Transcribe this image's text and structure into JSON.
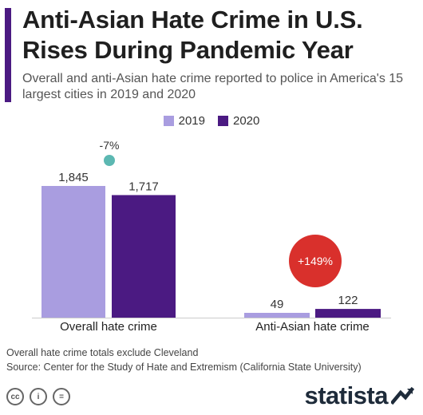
{
  "header": {
    "title": "Anti-Asian Hate Crime in U.S. Rises During Pandemic Year",
    "subtitle": "Overall and anti-Asian hate crime reported to police in America's 15 largest cities in 2019 and 2020"
  },
  "chart_data": {
    "type": "bar",
    "categories": [
      "Overall hate crime",
      "Anti-Asian hate crime"
    ],
    "series": [
      {
        "name": "2019",
        "values": [
          1845,
          49
        ],
        "labels": [
          "1,845",
          "49"
        ],
        "color": "#a99de0"
      },
      {
        "name": "2020",
        "values": [
          1717,
          122
        ],
        "labels": [
          "1,717",
          "122"
        ],
        "color": "#4b1a82"
      }
    ],
    "annotations": [
      {
        "category": "Overall hate crime",
        "text": "-7%",
        "color": "#5cb8b2"
      },
      {
        "category": "Anti-Asian hate crime",
        "text": "+149%",
        "color": "#d9302c"
      }
    ],
    "legend_position": "top-center",
    "grid": false,
    "ylim": [
      0,
      1845
    ]
  },
  "footer": {
    "note": "Overall hate crime totals exclude Cleveland",
    "source": "Source: Center for the Study of Hate and Extremism (California State University)",
    "license_icons": [
      "cc-icon",
      "attribution-icon",
      "no-derivatives-icon"
    ],
    "license_glyphs": [
      "cc",
      "i",
      "="
    ],
    "brand": "statista"
  },
  "colors": {
    "accent": "#4b1a82",
    "light": "#a99de0",
    "teal": "#5cb8b2",
    "red": "#d9302c"
  }
}
